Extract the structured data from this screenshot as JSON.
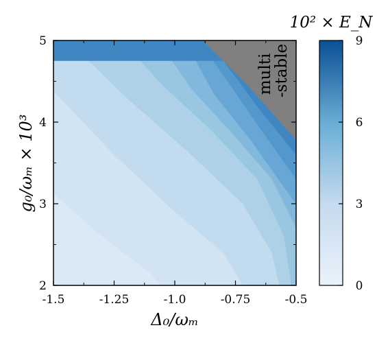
{
  "chart_data": {
    "type": "heatmap",
    "title": "",
    "xlabel": "Δ₀/ωₘ",
    "ylabel": "g₀/ωₘ × 10³",
    "xlim": [
      -1.5,
      -0.5
    ],
    "ylim": [
      2,
      5
    ],
    "x_ticks": [
      -1.5,
      -1.25,
      -1.0,
      -0.75,
      -0.5
    ],
    "x_tick_labels": [
      "-1.5",
      "-1.25",
      "-1.0",
      "-0.75",
      "-0.5"
    ],
    "y_ticks": [
      2,
      3,
      4,
      5
    ],
    "y_tick_labels": [
      "2",
      "3",
      "4",
      "5"
    ],
    "colorbar": {
      "title": "10² × E_N",
      "range": [
        0,
        9
      ],
      "ticks": [
        0,
        3,
        6,
        9
      ],
      "tick_labels": [
        "0",
        "3",
        "6",
        "9"
      ],
      "colors": {
        "low": "#e8f1fa",
        "mid": "#9dc9e1",
        "high": "#0b4f95"
      }
    },
    "region_label": {
      "line1": "multi",
      "line2": "-stable",
      "color": "#808080"
    },
    "multistable_boundary": [
      {
        "x": -0.885,
        "y": 5.0
      },
      {
        "x": -0.8,
        "y": 4.75
      },
      {
        "x": -0.7,
        "y": 4.45
      },
      {
        "x": -0.6,
        "y": 4.12
      },
      {
        "x": -0.5,
        "y": 3.78
      }
    ],
    "contour_levels": [
      {
        "level": 1,
        "points": [
          {
            "x": -1.5,
            "y": 3.12
          },
          {
            "x": -1.3,
            "y": 2.6
          },
          {
            "x": -1.1,
            "y": 2.15
          },
          {
            "x": -1.06,
            "y": 2.0
          }
        ]
      },
      {
        "level": 2,
        "points": [
          {
            "x": -1.5,
            "y": 4.38
          },
          {
            "x": -1.25,
            "y": 3.6
          },
          {
            "x": -1.0,
            "y": 2.9
          },
          {
            "x": -0.8,
            "y": 2.4
          },
          {
            "x": -0.72,
            "y": 2.0
          }
        ]
      },
      {
        "level": 3,
        "points": [
          {
            "x": -1.44,
            "y": 5.0
          },
          {
            "x": -1.2,
            "y": 4.3
          },
          {
            "x": -0.95,
            "y": 3.65
          },
          {
            "x": -0.72,
            "y": 3.0
          },
          {
            "x": -0.6,
            "y": 2.4
          },
          {
            "x": -0.57,
            "y": 2.0
          }
        ]
      },
      {
        "level": 4,
        "points": [
          {
            "x": -1.22,
            "y": 5.0
          },
          {
            "x": -1.05,
            "y": 4.45
          },
          {
            "x": -0.85,
            "y": 3.9
          },
          {
            "x": -0.66,
            "y": 3.3
          },
          {
            "x": -0.55,
            "y": 2.6
          },
          {
            "x": -0.52,
            "y": 2.0
          }
        ]
      },
      {
        "level": 5,
        "points": [
          {
            "x": -1.07,
            "y": 5.0
          },
          {
            "x": -0.93,
            "y": 4.4
          },
          {
            "x": -0.76,
            "y": 3.85
          },
          {
            "x": -0.6,
            "y": 3.3
          },
          {
            "x": -0.5,
            "y": 2.7
          }
        ]
      },
      {
        "level": 6,
        "points": [
          {
            "x": -0.96,
            "y": 5.0
          },
          {
            "x": -0.84,
            "y": 4.35
          },
          {
            "x": -0.68,
            "y": 3.75
          },
          {
            "x": -0.55,
            "y": 3.2
          },
          {
            "x": -0.5,
            "y": 3.0
          }
        ]
      },
      {
        "level": 7,
        "points": [
          {
            "x": -0.9,
            "y": 5.0
          },
          {
            "x": -0.76,
            "y": 4.4
          },
          {
            "x": -0.62,
            "y": 3.8
          },
          {
            "x": -0.5,
            "y": 3.3
          }
        ]
      },
      {
        "level": 8,
        "points": [
          {
            "x": -0.8,
            "y": 4.75
          },
          {
            "x": -0.65,
            "y": 4.15
          },
          {
            "x": -0.5,
            "y": 3.6
          }
        ]
      }
    ]
  }
}
